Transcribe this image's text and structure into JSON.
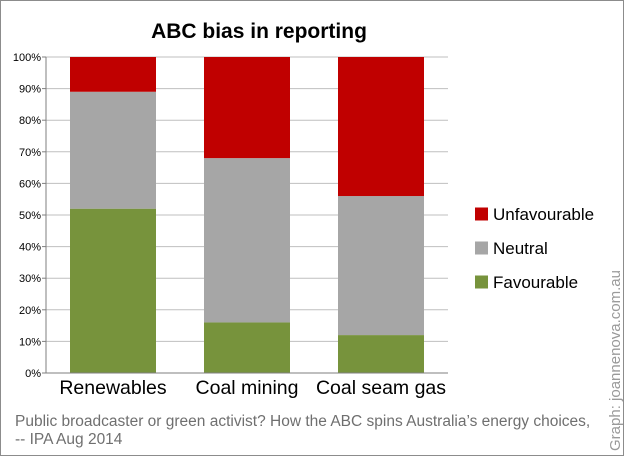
{
  "chart_data": {
    "type": "bar",
    "stacked": true,
    "title": "ABC bias in reporting",
    "categories": [
      "Renewables",
      "Coal mining",
      "Coal seam gas"
    ],
    "series": [
      {
        "name": "Favourable",
        "color": "#77933c",
        "values": [
          52,
          16,
          12
        ]
      },
      {
        "name": "Neutral",
        "color": "#a6a6a6",
        "values": [
          37,
          52,
          44
        ]
      },
      {
        "name": "Unfavourable",
        "color": "#c00000",
        "values": [
          11,
          32,
          44
        ]
      }
    ],
    "ylim": [
      0,
      100
    ],
    "yticks": [
      "0%",
      "10%",
      "20%",
      "30%",
      "40%",
      "50%",
      "60%",
      "70%",
      "80%",
      "90%",
      "100%"
    ],
    "grid": true,
    "legend": {
      "position": "right",
      "order": [
        "Unfavourable",
        "Neutral",
        "Favourable"
      ]
    }
  },
  "caption": {
    "line1": "Public broadcaster or green activist? How the ABC spins Australia’s energy choices,",
    "line2": "-- IPA Aug 2014"
  },
  "watermark": "Graph: joannenova.com.au"
}
